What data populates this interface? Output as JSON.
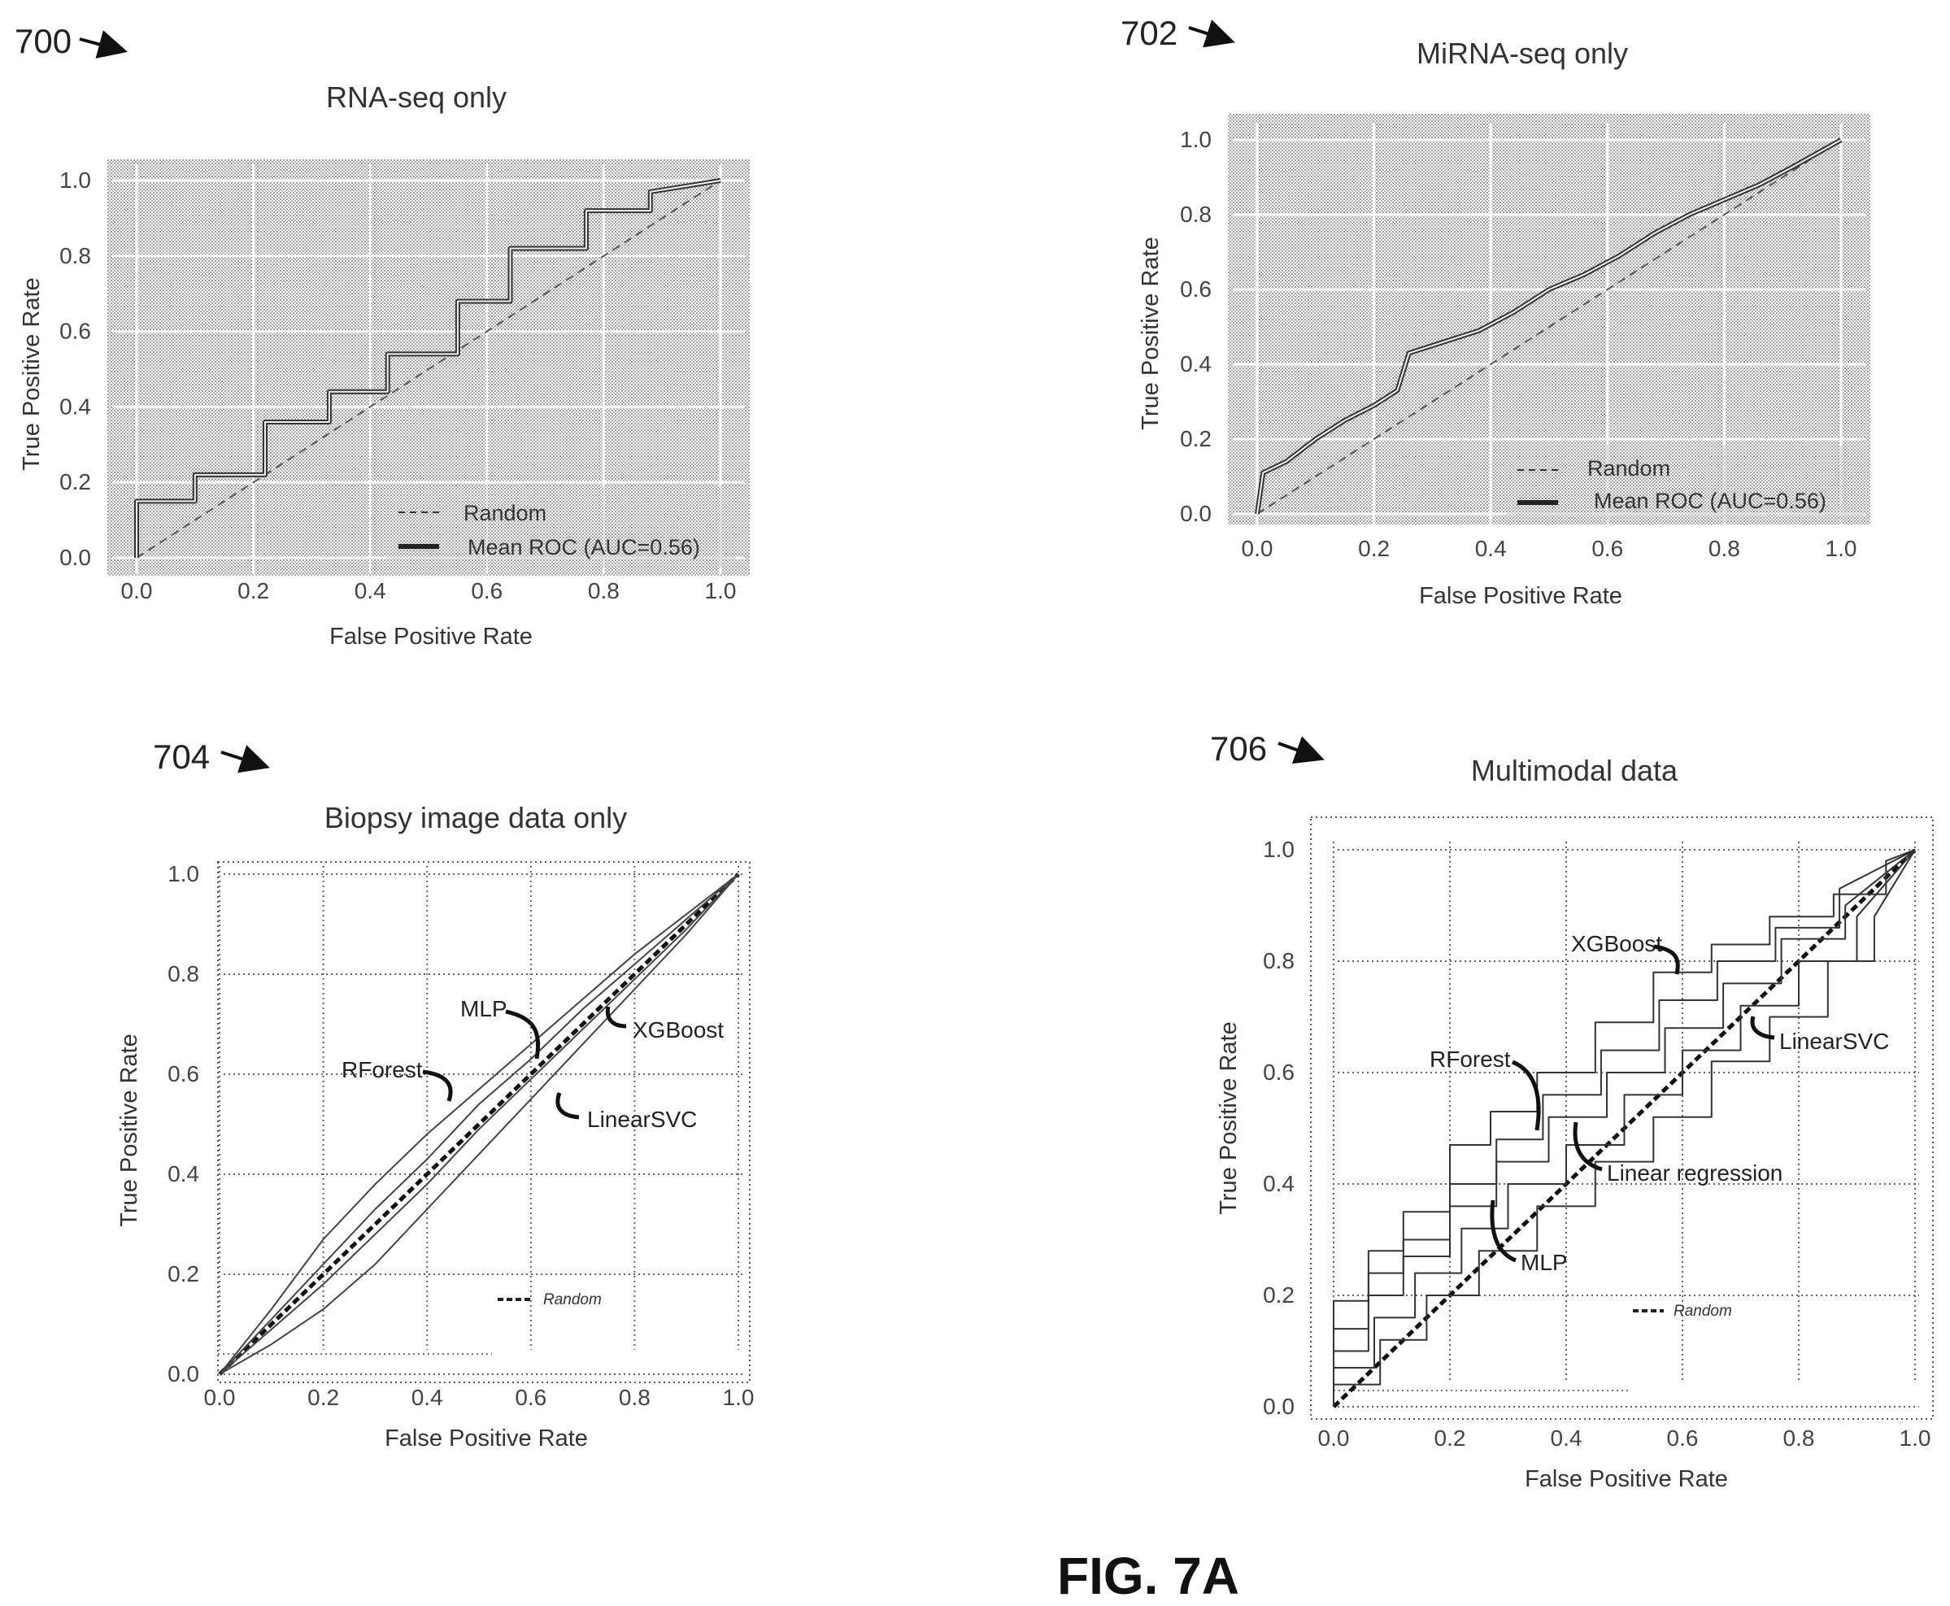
{
  "figure_label": "FIG. 7A",
  "colors": {
    "ink": "#222222",
    "grid_fill": "#c8c8c8",
    "random_line": "#333333"
  },
  "panels": [
    {
      "ref": "700"
    },
    {
      "ref": "702"
    },
    {
      "ref": "704"
    },
    {
      "ref": "706"
    }
  ],
  "chart_data": [
    {
      "type": "line",
      "title": "RNA-seq only",
      "xlabel": "False Positive Rate",
      "ylabel": "True Positive Rate",
      "xlim": [
        0,
        1
      ],
      "ylim": [
        0,
        1
      ],
      "xticks": [
        "0.0",
        "0.2",
        "0.4",
        "0.6",
        "0.8",
        "1.0"
      ],
      "yticks": [
        "0.0",
        "0.2",
        "0.4",
        "0.6",
        "0.8",
        "1.0"
      ],
      "background": "stippled",
      "grid": true,
      "legend_position": "lower-right",
      "series": [
        {
          "name": "Random",
          "style": "dashed",
          "x": [
            0,
            1
          ],
          "y": [
            0,
            1
          ]
        },
        {
          "name": "Mean ROC (AUC=0.56)",
          "style": "solid",
          "x": [
            0.0,
            0.0,
            0.1,
            0.1,
            0.22,
            0.22,
            0.33,
            0.33,
            0.43,
            0.43,
            0.55,
            0.55,
            0.64,
            0.64,
            0.77,
            0.77,
            0.88,
            0.88,
            1.0
          ],
          "y": [
            0.0,
            0.15,
            0.15,
            0.22,
            0.22,
            0.36,
            0.36,
            0.44,
            0.44,
            0.54,
            0.54,
            0.68,
            0.68,
            0.82,
            0.82,
            0.92,
            0.92,
            0.97,
            1.0
          ]
        }
      ]
    },
    {
      "type": "line",
      "title": "MiRNA-seq only",
      "xlabel": "False Positive Rate",
      "ylabel": "True Positive Rate",
      "xlim": [
        0,
        1
      ],
      "ylim": [
        0,
        1
      ],
      "xticks": [
        "0.0",
        "0.2",
        "0.4",
        "0.6",
        "0.8",
        "1.0"
      ],
      "yticks": [
        "0.0",
        "0.2",
        "0.4",
        "0.6",
        "0.8",
        "1.0"
      ],
      "background": "stippled",
      "grid": true,
      "legend_position": "lower-right",
      "series": [
        {
          "name": "Random",
          "style": "dashed",
          "x": [
            0,
            1
          ],
          "y": [
            0,
            1
          ]
        },
        {
          "name": "Mean ROC (AUC=0.56)",
          "style": "solid",
          "x": [
            0.0,
            0.01,
            0.05,
            0.1,
            0.15,
            0.2,
            0.24,
            0.26,
            0.32,
            0.38,
            0.44,
            0.5,
            0.56,
            0.62,
            0.68,
            0.74,
            0.8,
            0.86,
            0.92,
            1.0
          ],
          "y": [
            0.0,
            0.11,
            0.14,
            0.2,
            0.25,
            0.29,
            0.33,
            0.43,
            0.46,
            0.49,
            0.54,
            0.6,
            0.64,
            0.69,
            0.75,
            0.8,
            0.84,
            0.88,
            0.93,
            1.0
          ]
        }
      ]
    },
    {
      "type": "line",
      "title": "Biopsy image data only",
      "xlabel": "False Positive Rate",
      "ylabel": "True Positive Rate",
      "xlim": [
        0,
        1
      ],
      "ylim": [
        0,
        1
      ],
      "xticks": [
        "0.0",
        "0.2",
        "0.4",
        "0.6",
        "0.8",
        "1.0"
      ],
      "yticks": [
        "0.0",
        "0.2",
        "0.4",
        "0.6",
        "0.8",
        "1.0"
      ],
      "background": "white",
      "grid": true,
      "legend_position": "lower-right",
      "legend": [
        "Random"
      ],
      "annotations": [
        "MLP",
        "RForest",
        "XGBoost",
        "LinearSVC"
      ],
      "series": [
        {
          "name": "Random",
          "style": "dashed-bold",
          "x": [
            0,
            1
          ],
          "y": [
            0,
            1
          ]
        },
        {
          "name": "RForest",
          "style": "thin",
          "x": [
            0.0,
            0.1,
            0.2,
            0.3,
            0.4,
            0.5,
            0.6,
            0.7,
            0.8,
            0.9,
            1.0
          ],
          "y": [
            0.0,
            0.13,
            0.27,
            0.38,
            0.48,
            0.57,
            0.66,
            0.75,
            0.84,
            0.92,
            1.0
          ]
        },
        {
          "name": "MLP",
          "style": "thin",
          "x": [
            0.0,
            0.1,
            0.2,
            0.3,
            0.4,
            0.5,
            0.6,
            0.7,
            0.8,
            0.9,
            1.0
          ],
          "y": [
            0.0,
            0.11,
            0.22,
            0.33,
            0.43,
            0.54,
            0.63,
            0.73,
            0.82,
            0.91,
            1.0
          ]
        },
        {
          "name": "XGBoost",
          "style": "thin",
          "x": [
            0.0,
            0.1,
            0.2,
            0.3,
            0.4,
            0.5,
            0.6,
            0.7,
            0.8,
            0.9,
            1.0
          ],
          "y": [
            0.0,
            0.09,
            0.18,
            0.28,
            0.38,
            0.49,
            0.59,
            0.69,
            0.79,
            0.89,
            1.0
          ]
        },
        {
          "name": "LinearSVC",
          "style": "thin",
          "x": [
            0.0,
            0.1,
            0.2,
            0.3,
            0.4,
            0.5,
            0.6,
            0.7,
            0.8,
            0.9,
            1.0
          ],
          "y": [
            0.0,
            0.06,
            0.13,
            0.22,
            0.33,
            0.44,
            0.55,
            0.66,
            0.77,
            0.88,
            1.0
          ]
        }
      ]
    },
    {
      "type": "line",
      "title": "Multimodal data",
      "xlabel": "False Positive Rate",
      "ylabel": "True Positive Rate",
      "xlim": [
        0,
        1
      ],
      "ylim": [
        0,
        1
      ],
      "xticks": [
        "0.0",
        "0.2",
        "0.4",
        "0.6",
        "0.8",
        "1.0"
      ],
      "yticks": [
        "0.0",
        "0.2",
        "0.4",
        "0.6",
        "0.8",
        "1.0"
      ],
      "background": "white",
      "grid": true,
      "legend_position": "lower-right",
      "legend": [
        "Random"
      ],
      "annotations": [
        "XGBoost",
        "RForest",
        "LinearSVC",
        "Linear regression",
        "MLP"
      ],
      "series": [
        {
          "name": "Random",
          "style": "dashed-bold",
          "x": [
            0,
            1
          ],
          "y": [
            0,
            1
          ]
        },
        {
          "name": "XGBoost",
          "style": "stepped",
          "x": [
            0.0,
            0.0,
            0.06,
            0.06,
            0.12,
            0.12,
            0.2,
            0.2,
            0.27,
            0.27,
            0.35,
            0.35,
            0.45,
            0.45,
            0.55,
            0.55,
            0.65,
            0.65,
            0.75,
            0.75,
            0.86,
            0.86,
            0.95,
            0.95,
            1.0
          ],
          "y": [
            0.0,
            0.19,
            0.19,
            0.28,
            0.28,
            0.35,
            0.35,
            0.47,
            0.47,
            0.53,
            0.53,
            0.6,
            0.6,
            0.69,
            0.69,
            0.78,
            0.78,
            0.83,
            0.83,
            0.88,
            0.88,
            0.92,
            0.92,
            0.98,
            1.0
          ]
        },
        {
          "name": "RForest",
          "style": "stepped",
          "x": [
            0.0,
            0.0,
            0.06,
            0.06,
            0.12,
            0.12,
            0.2,
            0.2,
            0.28,
            0.28,
            0.36,
            0.36,
            0.46,
            0.46,
            0.56,
            0.56,
            0.66,
            0.66,
            0.76,
            0.76,
            0.87,
            0.87,
            1.0
          ],
          "y": [
            0.0,
            0.14,
            0.14,
            0.24,
            0.24,
            0.3,
            0.3,
            0.4,
            0.4,
            0.48,
            0.48,
            0.56,
            0.56,
            0.64,
            0.64,
            0.73,
            0.73,
            0.8,
            0.8,
            0.86,
            0.86,
            0.93,
            1.0
          ]
        },
        {
          "name": "MLP",
          "style": "stepped",
          "x": [
            0.0,
            0.0,
            0.06,
            0.06,
            0.12,
            0.12,
            0.2,
            0.2,
            0.28,
            0.28,
            0.37,
            0.37,
            0.47,
            0.47,
            0.57,
            0.57,
            0.67,
            0.67,
            0.77,
            0.77,
            0.88,
            0.88,
            1.0
          ],
          "y": [
            0.0,
            0.1,
            0.1,
            0.2,
            0.2,
            0.27,
            0.27,
            0.36,
            0.36,
            0.44,
            0.44,
            0.52,
            0.52,
            0.6,
            0.6,
            0.68,
            0.68,
            0.76,
            0.76,
            0.84,
            0.84,
            0.9,
            1.0
          ]
        },
        {
          "name": "Linear regression",
          "style": "stepped",
          "x": [
            0.0,
            0.0,
            0.07,
            0.07,
            0.14,
            0.14,
            0.22,
            0.22,
            0.3,
            0.3,
            0.4,
            0.4,
            0.5,
            0.5,
            0.6,
            0.6,
            0.7,
            0.7,
            0.8,
            0.8,
            0.9,
            0.9,
            1.0
          ],
          "y": [
            0.0,
            0.07,
            0.07,
            0.16,
            0.16,
            0.24,
            0.24,
            0.32,
            0.32,
            0.4,
            0.4,
            0.47,
            0.47,
            0.56,
            0.56,
            0.64,
            0.64,
            0.72,
            0.72,
            0.8,
            0.8,
            0.88,
            1.0
          ]
        },
        {
          "name": "LinearSVC",
          "style": "stepped",
          "x": [
            0.0,
            0.0,
            0.08,
            0.08,
            0.16,
            0.16,
            0.25,
            0.25,
            0.35,
            0.35,
            0.45,
            0.45,
            0.55,
            0.55,
            0.65,
            0.65,
            0.75,
            0.75,
            0.85,
            0.85,
            0.93,
            0.93,
            1.0
          ],
          "y": [
            0.0,
            0.04,
            0.04,
            0.12,
            0.12,
            0.2,
            0.2,
            0.28,
            0.28,
            0.36,
            0.36,
            0.44,
            0.44,
            0.52,
            0.52,
            0.62,
            0.62,
            0.7,
            0.7,
            0.8,
            0.8,
            0.88,
            1.0
          ]
        }
      ]
    }
  ]
}
